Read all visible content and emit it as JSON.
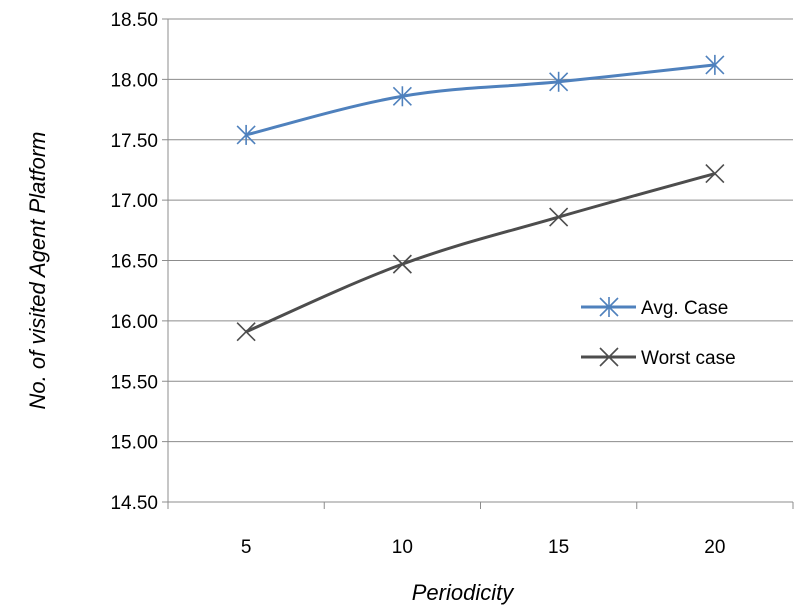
{
  "chart_data": {
    "type": "line",
    "title": "",
    "xlabel": "Periodicity",
    "ylabel": "No. of visited Agent Platform",
    "categories": [
      "5",
      "10",
      "15",
      "20"
    ],
    "ylim": [
      14.5,
      18.5
    ],
    "yticks": [
      "14.50",
      "15.00",
      "15.50",
      "16.00",
      "16.50",
      "17.00",
      "17.50",
      "18.00",
      "18.50"
    ],
    "grid": "horizontal",
    "legend_position": "center-right",
    "series": [
      {
        "name": "Avg. Case",
        "values": [
          17.54,
          17.86,
          17.98,
          18.12
        ],
        "color": "#4F81BD",
        "marker": "asterisk"
      },
      {
        "name": "Worst case",
        "values": [
          15.91,
          16.47,
          16.86,
          17.22
        ],
        "color": "#4D4D4D",
        "marker": "x"
      }
    ]
  }
}
